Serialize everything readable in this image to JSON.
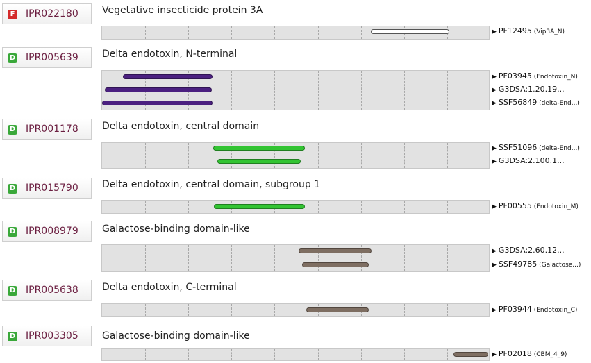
{
  "colors": {
    "F": "#d42a2a",
    "D": "#3aa83a",
    "white": "#ffffff",
    "purple": "#4b2080",
    "green": "#33c433",
    "brown": "#7e6e62"
  },
  "entries": [
    {
      "type": "F",
      "id": "IPR022180",
      "name": "Vegetative insecticide protein 3A",
      "rows": [
        {
          "sig": "PF12495",
          "desc": "(Vip3A_N)",
          "start": 0.693,
          "end": 0.896,
          "color": "white"
        }
      ]
    },
    {
      "type": "D",
      "id": "IPR005639",
      "name": "Delta endotoxin, N-terminal",
      "rows": [
        {
          "sig": "PF03945",
          "desc": "(Endotoxin_N)",
          "start": 0.054,
          "end": 0.284,
          "color": "purple"
        },
        {
          "sig": "G3DSA:1.20.19...",
          "desc": "",
          "start": 0.008,
          "end": 0.284,
          "color": "purple"
        },
        {
          "sig": "SSF56849",
          "desc": "(delta-End...)",
          "start": 0.0,
          "end": 0.284,
          "color": "purple"
        }
      ]
    },
    {
      "type": "D",
      "id": "IPR001178",
      "name": "Delta endotoxin, central domain",
      "rows": [
        {
          "sig": "SSF51096",
          "desc": "(delta-End...)",
          "start": 0.286,
          "end": 0.522,
          "color": "green"
        },
        {
          "sig": "G3DSA:2.100.1...",
          "desc": "",
          "start": 0.297,
          "end": 0.512,
          "color": "green"
        }
      ]
    },
    {
      "type": "D",
      "id": "IPR015790",
      "name": "Delta endotoxin, central domain, subgroup 1",
      "rows": [
        {
          "sig": "PF00555",
          "desc": "(Endotoxin_M)",
          "start": 0.288,
          "end": 0.522,
          "color": "green"
        }
      ]
    },
    {
      "type": "D",
      "id": "IPR008979",
      "name": "Galactose-binding domain-like",
      "rows": [
        {
          "sig": "G3DSA:2.60.12...",
          "desc": "",
          "start": 0.506,
          "end": 0.693,
          "color": "brown"
        },
        {
          "sig": "SSF49785",
          "desc": "(Galactose...)",
          "start": 0.515,
          "end": 0.687,
          "color": "brown"
        }
      ]
    },
    {
      "type": "D",
      "id": "IPR005638",
      "name": "Delta endotoxin, C-terminal",
      "rows": [
        {
          "sig": "PF03944",
          "desc": "(Endotoxin_C)",
          "start": 0.526,
          "end": 0.687,
          "color": "brown"
        }
      ]
    },
    {
      "type": "D",
      "id": "IPR003305",
      "name": "Galactose-binding domain-like",
      "rows": [
        {
          "sig": "PF02018",
          "desc": "(CBM_4_9)",
          "start": 0.906,
          "end": 0.995,
          "color": "brown"
        }
      ]
    }
  ]
}
